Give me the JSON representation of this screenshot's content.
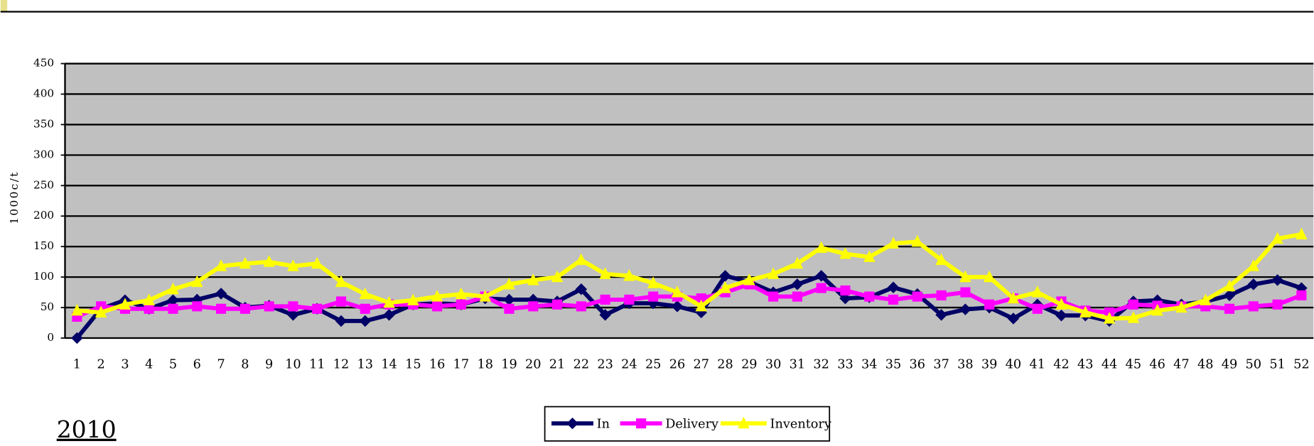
{
  "chart_data": {
    "type": "line",
    "annotation": "2010",
    "ylabel": "1000c/t",
    "categories": [
      "1",
      "2",
      "3",
      "4",
      "5",
      "6",
      "7",
      "8",
      "9",
      "10",
      "11",
      "12",
      "13",
      "14",
      "15",
      "16",
      "17",
      "18",
      "19",
      "20",
      "21",
      "22",
      "23",
      "24",
      "25",
      "26",
      "27",
      "28",
      "29",
      "30",
      "31",
      "32",
      "33",
      "34",
      "35",
      "36",
      "37",
      "38",
      "39",
      "40",
      "41",
      "42",
      "43",
      "44",
      "45",
      "46",
      "47",
      "48",
      "49",
      "50",
      "51",
      "52"
    ],
    "series": [
      {
        "name": "In",
        "color": "#000066",
        "marker": "diamond",
        "values": [
          0,
          48,
          62,
          48,
          62,
          63,
          73,
          50,
          53,
          38,
          48,
          28,
          28,
          38,
          55,
          57,
          55,
          65,
          63,
          63,
          60,
          80,
          38,
          57,
          57,
          52,
          42,
          102,
          92,
          75,
          88,
          102,
          65,
          67,
          83,
          72,
          38,
          47,
          50,
          32,
          55,
          37,
          37,
          28,
          60,
          62,
          55,
          60,
          70,
          88,
          95,
          82
        ]
      },
      {
        "name": "Delivery",
        "color": "#ff00ff",
        "marker": "square",
        "values": [
          35,
          52,
          48,
          48,
          48,
          52,
          48,
          48,
          52,
          52,
          48,
          60,
          48,
          55,
          55,
          52,
          55,
          68,
          48,
          52,
          55,
          52,
          63,
          63,
          68,
          68,
          65,
          75,
          88,
          68,
          68,
          82,
          78,
          68,
          63,
          68,
          70,
          75,
          55,
          65,
          48,
          60,
          45,
          42,
          55,
          53,
          52,
          52,
          48,
          52,
          55,
          70
        ]
      },
      {
        "name": "Inventory",
        "color": "#ffff00",
        "marker": "triangle",
        "values": [
          45,
          42,
          55,
          62,
          80,
          92,
          118,
          122,
          125,
          118,
          122,
          92,
          72,
          58,
          62,
          68,
          72,
          68,
          88,
          95,
          100,
          128,
          105,
          102,
          90,
          75,
          52,
          82,
          95,
          105,
          122,
          148,
          138,
          133,
          155,
          158,
          128,
          100,
          100,
          65,
          75,
          55,
          42,
          32,
          33,
          45,
          50,
          62,
          85,
          118,
          163,
          170
        ]
      }
    ],
    "ylim": [
      0,
      450
    ],
    "yticks": [
      0,
      50,
      100,
      150,
      200,
      250,
      300,
      350,
      400,
      450
    ],
    "grid": true,
    "plot_background": "#c0c0c0",
    "legend": "bottom"
  }
}
